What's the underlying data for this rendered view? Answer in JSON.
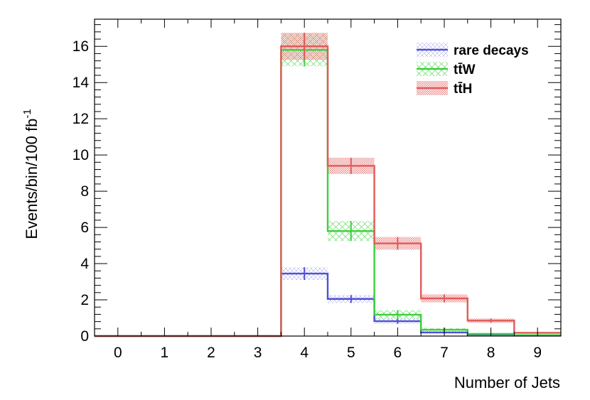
{
  "chart_data": {
    "type": "step-histogram",
    "title": "",
    "xlabel": "Number of Jets",
    "ylabel": "Events/bin/100 fb",
    "ylabel_superscript": "-1",
    "xlim": [
      -0.5,
      9.5
    ],
    "ylim": [
      0,
      17.5
    ],
    "x_ticks": [
      "0",
      "1",
      "2",
      "3",
      "4",
      "5",
      "6",
      "7",
      "8",
      "9"
    ],
    "y_ticks": [
      "0",
      "2",
      "4",
      "6",
      "8",
      "10",
      "12",
      "14",
      "16"
    ],
    "grid": false,
    "legend_position": "top-right",
    "categories": [
      0,
      1,
      2,
      3,
      4,
      5,
      6,
      7,
      8,
      9
    ],
    "series": [
      {
        "name": "rare decays",
        "color": "#4f4fd8",
        "values": [
          0,
          0,
          0,
          0,
          3.45,
          2.05,
          0.82,
          0.2,
          0.08,
          0.05
        ],
        "errors": [
          0,
          0,
          0,
          0,
          0.35,
          0.22,
          0.15,
          0.07,
          0.04,
          0.03
        ]
      },
      {
        "name": "tt̄W",
        "color": "#3dd03d",
        "values": [
          0,
          0,
          0,
          0,
          15.8,
          5.8,
          1.18,
          0.35,
          0.12,
          0.05
        ],
        "errors": [
          0,
          0,
          0,
          0,
          0.9,
          0.55,
          0.25,
          0.1,
          0.05,
          0.03
        ]
      },
      {
        "name": "tt̄H",
        "color": "#e15a5a",
        "values": [
          0,
          0,
          0,
          0,
          16.0,
          9.4,
          5.12,
          2.08,
          0.85,
          0.18
        ],
        "errors": [
          0,
          0,
          0,
          0,
          0.75,
          0.45,
          0.35,
          0.22,
          0.12,
          0.05
        ]
      }
    ]
  }
}
